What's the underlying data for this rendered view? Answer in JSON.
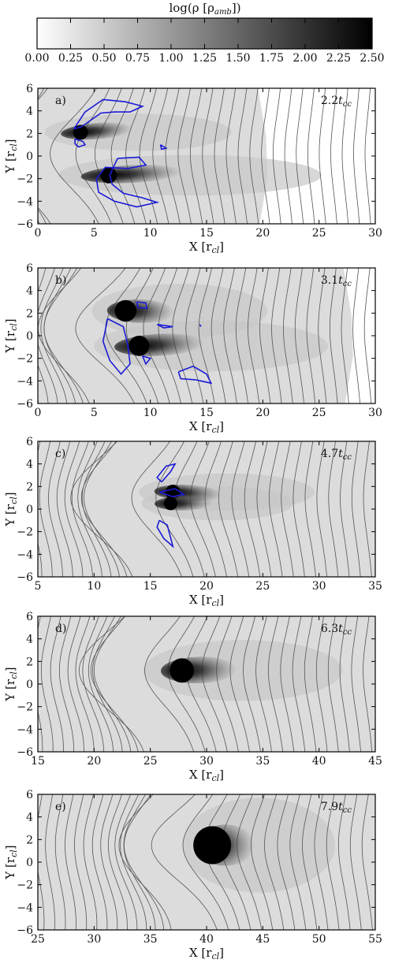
{
  "colorbar": {
    "label": "log(ρ [ρ",
    "label_sub": "amb",
    "label_tail": "])",
    "ticks": [
      "0.00",
      "0.25",
      "0.50",
      "0.75",
      "1.00",
      "1.25",
      "1.50",
      "1.75",
      "2.00",
      "2.25",
      "2.50"
    ],
    "range": [
      0,
      2.5
    ],
    "colors": [
      "#ffffff",
      "#000000"
    ]
  },
  "chart_data": [
    {
      "type": "heatmap",
      "panel_label": "a)",
      "time": "2.2",
      "time_sub": "cc",
      "xlabel": "X [r",
      "ylabel": "Y [r",
      "label_sub": "cl",
      "xlim": [
        0,
        30
      ],
      "ylim": [
        -6,
        6
      ],
      "xticks": [
        "0",
        "5",
        "10",
        "15",
        "20",
        "25",
        "30"
      ],
      "yticks": [
        "6",
        "4",
        "2",
        "0",
        "−2",
        "−4",
        "−6"
      ],
      "shock_x": 20,
      "clumps": [
        {
          "x": 3.8,
          "y": 2.1,
          "len": 3.2,
          "w": 0.55,
          "dir": 0.15
        },
        {
          "x": 6.3,
          "y": -1.7,
          "len": 4.5,
          "w": 0.6,
          "dir": 0.1
        }
      ],
      "contours": [
        [
          [
            3.2,
            2.4
          ],
          [
            4.2,
            3.9
          ],
          [
            5.8,
            5.0
          ],
          [
            7.8,
            4.8
          ],
          [
            9.3,
            4.4
          ],
          [
            8.2,
            3.9
          ],
          [
            6.8,
            3.9
          ],
          [
            5.6,
            3.8
          ],
          [
            4.6,
            3.1
          ],
          [
            3.9,
            2.6
          ],
          [
            3.2,
            2.4
          ]
        ],
        [
          [
            3.3,
            1.5
          ],
          [
            4.0,
            1.3
          ],
          [
            4.2,
            1.0
          ],
          [
            3.6,
            0.8
          ],
          [
            3.3,
            1.1
          ],
          [
            3.3,
            1.5
          ]
        ],
        [
          [
            7.1,
            -0.2
          ],
          [
            9.0,
            -0.1
          ],
          [
            9.6,
            -0.8
          ],
          [
            8.0,
            -1.1
          ],
          [
            6.0,
            -1.0
          ],
          [
            5.2,
            -2.0
          ],
          [
            5.4,
            -3.2
          ],
          [
            6.8,
            -4.0
          ],
          [
            8.8,
            -4.5
          ],
          [
            10.6,
            -4.1
          ],
          [
            9.3,
            -3.7
          ],
          [
            7.6,
            -3.3
          ],
          [
            6.6,
            -2.5
          ],
          [
            6.4,
            -1.7
          ],
          [
            6.8,
            -0.8
          ],
          [
            7.1,
            -0.2
          ]
        ],
        [
          [
            10.9,
            1.0
          ],
          [
            11.4,
            0.7
          ],
          [
            11.0,
            0.6
          ],
          [
            10.9,
            1.0
          ]
        ]
      ]
    },
    {
      "type": "heatmap",
      "panel_label": "b)",
      "time": "3.1",
      "time_sub": "cc",
      "xlabel": "X [r",
      "ylabel": "Y [r",
      "label_sub": "cl",
      "xlim": [
        0,
        30
      ],
      "ylim": [
        -6,
        6
      ],
      "xticks": [
        "0",
        "5",
        "10",
        "15",
        "20",
        "25",
        "30"
      ],
      "yticks": [
        "6",
        "4",
        "2",
        "0",
        "−2",
        "−4",
        "−6"
      ],
      "shock_x": 27.6,
      "clumps": [
        {
          "x": 7.8,
          "y": 2.2,
          "len": 3.0,
          "w": 0.8,
          "dir": -0.05
        },
        {
          "x": 9.0,
          "y": -0.9,
          "len": 4.0,
          "w": 0.75,
          "dir": 0.1
        }
      ],
      "contours": [
        [
          [
            6.2,
            1.5
          ],
          [
            7.6,
            0.8
          ],
          [
            8.0,
            -0.8
          ],
          [
            8.2,
            -2.5
          ],
          [
            7.4,
            -3.4
          ],
          [
            6.4,
            -2.2
          ],
          [
            5.8,
            -0.5
          ],
          [
            6.2,
            1.5
          ]
        ],
        [
          [
            8.8,
            3.0
          ],
          [
            9.6,
            2.9
          ],
          [
            9.7,
            2.4
          ],
          [
            8.9,
            2.5
          ],
          [
            8.8,
            3.0
          ]
        ],
        [
          [
            10.6,
            1.0
          ],
          [
            12.0,
            0.8
          ],
          [
            11.2,
            0.7
          ],
          [
            10.6,
            1.0
          ]
        ],
        [
          [
            9.3,
            -1.8
          ],
          [
            10.0,
            -2.0
          ],
          [
            9.6,
            -2.5
          ],
          [
            9.3,
            -1.8
          ]
        ],
        [
          [
            12.5,
            -3.2
          ],
          [
            13.8,
            -2.7
          ],
          [
            15.0,
            -3.4
          ],
          [
            15.4,
            -4.2
          ],
          [
            14.0,
            -3.9
          ],
          [
            12.7,
            -3.8
          ],
          [
            12.5,
            -3.2
          ]
        ],
        [
          [
            14.4,
            1.0
          ],
          [
            14.5,
            0.8
          ],
          [
            14.4,
            1.0
          ]
        ]
      ]
    },
    {
      "type": "heatmap",
      "panel_label": "c)",
      "time": "4.7",
      "time_sub": "cc",
      "xlabel": "X [r",
      "ylabel": "Y [r",
      "label_sub": "cl",
      "xlim": [
        5,
        35
      ],
      "ylim": [
        -6,
        6
      ],
      "xticks": [
        "5",
        "10",
        "15",
        "20",
        "25",
        "30",
        "35"
      ],
      "yticks": [
        "6",
        "4",
        "2",
        "0",
        "−2",
        "−4",
        "−6"
      ],
      "shock_x": null,
      "clumps": [
        {
          "x": 17.0,
          "y": 1.5,
          "len": 3.0,
          "w": 0.55,
          "dir": -0.1
        },
        {
          "x": 16.8,
          "y": 0.5,
          "len": 2.6,
          "w": 0.5,
          "dir": 0.05
        }
      ],
      "contours": [
        [
          [
            16.0,
            2.4
          ],
          [
            16.8,
            3.3
          ],
          [
            17.2,
            4.0
          ],
          [
            16.4,
            3.8
          ],
          [
            15.6,
            2.8
          ],
          [
            16.0,
            2.4
          ]
        ],
        [
          [
            15.8,
            1.5
          ],
          [
            17.2,
            1.8
          ],
          [
            18.0,
            1.3
          ],
          [
            17.0,
            1.1
          ],
          [
            15.8,
            1.5
          ]
        ],
        [
          [
            15.8,
            -1.0
          ],
          [
            16.5,
            -1.4
          ],
          [
            16.8,
            -2.5
          ],
          [
            17.0,
            -3.3
          ],
          [
            16.2,
            -2.6
          ],
          [
            15.6,
            -1.6
          ],
          [
            15.8,
            -1.0
          ]
        ]
      ]
    },
    {
      "type": "heatmap",
      "panel_label": "d)",
      "time": "6.3",
      "time_sub": "cc",
      "xlabel": "X [r",
      "ylabel": "Y [r",
      "label_sub": "cl",
      "xlim": [
        15,
        45
      ],
      "ylim": [
        -6,
        6
      ],
      "xticks": [
        "15",
        "20",
        "25",
        "30",
        "35",
        "40",
        "45"
      ],
      "yticks": [
        "6",
        "4",
        "2",
        "0",
        "−2",
        "−4",
        "−6"
      ],
      "shock_x": null,
      "clumps": [
        {
          "x": 27.8,
          "y": 1.2,
          "len": 3.4,
          "w": 0.9,
          "dir": 0.05
        }
      ],
      "contours": []
    },
    {
      "type": "heatmap",
      "panel_label": "e)",
      "time": "7.9",
      "time_sub": "cc",
      "xlabel": "X [r",
      "ylabel": "Y [r",
      "label_sub": "cl",
      "xlim": [
        25,
        55
      ],
      "ylim": [
        -6,
        6
      ],
      "xticks": [
        "25",
        "30",
        "35",
        "40",
        "45",
        "50",
        "55"
      ],
      "yticks": [
        "6",
        "4",
        "2",
        "0",
        "−2",
        "−4",
        "−6"
      ],
      "shock_x": null,
      "clumps": [
        {
          "x": 40.5,
          "y": 1.5,
          "len": 2.6,
          "w": 1.4,
          "dir": 0.0
        }
      ],
      "contours": []
    }
  ]
}
